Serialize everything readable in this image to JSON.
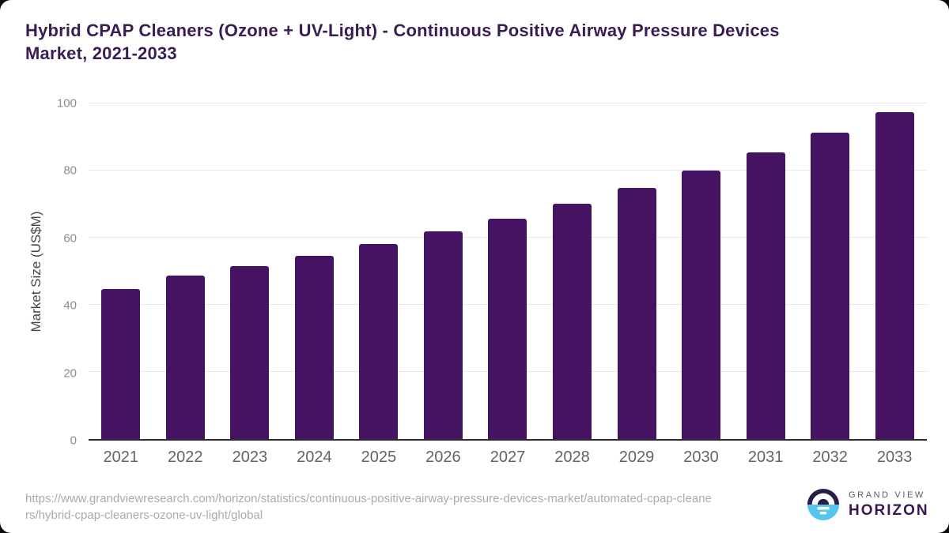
{
  "header": {
    "title": "Hybrid CPAP Cleaners (Ozone + UV-Light) - Continuous Positive Airway Pressure Devices Market, 2021-2033",
    "title_lines": [
      "Hybrid CPAP Cleaners (Ozone + UV-Light) - Continuous Positive Airway Pressure Devices",
      "Market, 2021-2033"
    ],
    "title_color": "#3a1d52"
  },
  "chart_data": {
    "type": "bar",
    "title": "Hybrid CPAP Cleaners (Ozone + UV-Light) - Continuous Positive Airway Pressure Devices Market, 2021-2033",
    "categories": [
      "2021",
      "2022",
      "2023",
      "2024",
      "2025",
      "2026",
      "2027",
      "2028",
      "2029",
      "2030",
      "2031",
      "2032",
      "2033"
    ],
    "values": [
      44.6,
      48.8,
      51.6,
      54.6,
      58.1,
      61.9,
      65.7,
      70.1,
      74.8,
      80.1,
      85.4,
      91.2,
      97.5
    ],
    "xlabel": "",
    "ylabel": "Market Size (US$M)",
    "ylim": [
      0,
      100
    ],
    "yticks": [
      0,
      20,
      40,
      60,
      80,
      100
    ],
    "grid": "horizontal",
    "legend": "none",
    "bar_color": "#451361"
  },
  "footer": {
    "source_url": "https://www.grandviewresearch.com/horizon/statistics/continuous-positive-airway-pressure-devices-market/automated-cpap-cleaners/hybrid-cpap-cleaners-ozone-uv-light/global",
    "source_url_lines": [
      "https://www.grandviewresearch.com/horizon/statistics/continuous-positive-airway-pressure-devices-market/automated-cpap-cleane",
      "rs/hybrid-cpap-cleaners-ozone-uv-light/global"
    ],
    "logo": {
      "brand_top": "GRAND VIEW",
      "brand_bottom": "HORIZON",
      "icon": "sunrise-horizon-icon",
      "icon_dark_color": "#2d1b47",
      "icon_light_color": "#56c6ef"
    }
  }
}
